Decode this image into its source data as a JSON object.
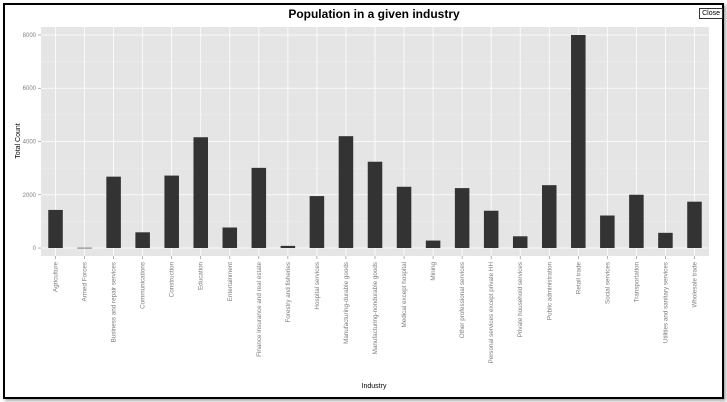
{
  "window": {
    "close_label": "Close"
  },
  "chart_data": {
    "type": "bar",
    "title": "Population in a given industry",
    "xlabel": "Industry",
    "ylabel": "Total Count",
    "ylim": [
      -300,
      8300
    ],
    "yticks": [
      0,
      2000,
      4000,
      6000,
      8000
    ],
    "grid": true,
    "categories": [
      "Agriculture",
      "Armed Forces",
      "Business and repair services",
      "Communications",
      "Construction",
      "Education",
      "Entertainment",
      "Finance insurance and real estate",
      "Forestry and fisheries",
      "Hospital services",
      "Manufacturing-durable goods",
      "Manufacturing-nondurable goods",
      "Medical except hospital",
      "Mining",
      "Other professional services",
      "Personal services except private HH",
      "Private household services",
      "Public administration",
      "Retail trade",
      "Social services",
      "Transportation",
      "Utilities and sanitary services",
      "Wholesale trade"
    ],
    "values": [
      1430,
      10,
      2680,
      590,
      2720,
      4160,
      770,
      3010,
      80,
      1950,
      4200,
      3240,
      2300,
      280,
      2250,
      1400,
      440,
      2360,
      8000,
      1220,
      2000,
      570,
      1740
    ],
    "colors": {
      "bar": "#333333",
      "panel": "#e5e5e5",
      "grid": "#ffffff",
      "axis_text": "#7f7f7f"
    }
  }
}
